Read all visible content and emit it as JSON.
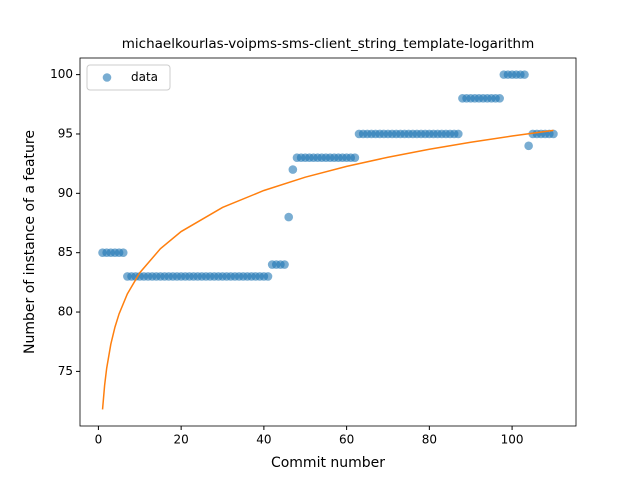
{
  "chart_data": {
    "type": "scatter",
    "title": "michaelkourlas-voipms-sms-client_string_template-logarithm",
    "xlabel": "Commit number",
    "ylabel": "Number of instance of a feature",
    "xlim": [
      -4.45,
      115.45
    ],
    "ylim": [
      70.4,
      101.4
    ],
    "xticks": [
      0,
      20,
      40,
      60,
      80,
      100
    ],
    "yticks": [
      75,
      80,
      85,
      90,
      95,
      100
    ],
    "legend": "upper left",
    "series": [
      {
        "name": "data",
        "type": "scatter",
        "color": "#1f77b4",
        "x": [
          1,
          2,
          3,
          4,
          5,
          6,
          7,
          8,
          9,
          10,
          11,
          12,
          13,
          14,
          15,
          16,
          17,
          18,
          19,
          20,
          21,
          22,
          23,
          24,
          25,
          26,
          27,
          28,
          29,
          30,
          31,
          32,
          33,
          34,
          35,
          36,
          37,
          38,
          39,
          40,
          41,
          42,
          43,
          44,
          45,
          46,
          47,
          48,
          49,
          50,
          51,
          52,
          53,
          54,
          55,
          56,
          57,
          58,
          59,
          60,
          61,
          62,
          63,
          64,
          65,
          66,
          67,
          68,
          69,
          70,
          71,
          72,
          73,
          74,
          75,
          76,
          77,
          78,
          79,
          80,
          81,
          82,
          83,
          84,
          85,
          86,
          87,
          88,
          89,
          90,
          91,
          92,
          93,
          94,
          95,
          96,
          97,
          98,
          99,
          100,
          101,
          102,
          103,
          104,
          105,
          106,
          107,
          108,
          109,
          110
        ],
        "values": [
          85,
          85,
          85,
          85,
          85,
          85,
          83,
          83,
          83,
          83,
          83,
          83,
          83,
          83,
          83,
          83,
          83,
          83,
          83,
          83,
          83,
          83,
          83,
          83,
          83,
          83,
          83,
          83,
          83,
          83,
          83,
          83,
          83,
          83,
          83,
          83,
          83,
          83,
          83,
          83,
          83,
          84,
          84,
          84,
          84,
          88,
          92,
          93,
          93,
          93,
          93,
          93,
          93,
          93,
          93,
          93,
          93,
          93,
          93,
          93,
          93,
          93,
          95,
          95,
          95,
          95,
          95,
          95,
          95,
          95,
          95,
          95,
          95,
          95,
          95,
          95,
          95,
          95,
          95,
          95,
          95,
          95,
          95,
          95,
          95,
          95,
          95,
          98,
          98,
          98,
          98,
          98,
          98,
          98,
          98,
          98,
          98,
          100,
          100,
          100,
          100,
          100,
          100,
          94,
          95,
          95,
          95,
          95,
          95,
          95
        ]
      },
      {
        "type": "line",
        "color": "#ff7f0e",
        "x": [
          1,
          1.5,
          2,
          3,
          4,
          5,
          7,
          10,
          15,
          20,
          30,
          40,
          50,
          60,
          70,
          80,
          90,
          100,
          110
        ],
        "values": [
          71.8,
          73.83,
          75.27,
          77.29,
          78.73,
          79.85,
          81.53,
          83.31,
          85.34,
          86.78,
          88.81,
          90.24,
          91.36,
          92.27,
          93.04,
          93.71,
          94.3,
          94.83,
          95.3
        ]
      }
    ]
  }
}
